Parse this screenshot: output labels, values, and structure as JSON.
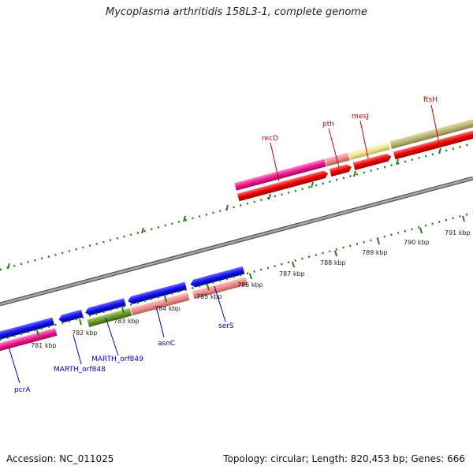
{
  "title": "Mycoplasma arthritidis 158L3-1, complete genome",
  "footer": {
    "accession": "Accession: NC_011025",
    "topology": "Topology: circular; Length: 820,453 bp; Genes: 666"
  },
  "colors": {
    "plus_label": "#cc0000",
    "minus_label": "#0000bb",
    "tick": "#2a7a1a",
    "backbone": "#8a8a8a"
  },
  "scale_labels": [
    {
      "text": "781 kbp"
    },
    {
      "text": "782 kbp"
    },
    {
      "text": "783 kbp"
    },
    {
      "text": "784 kbp"
    },
    {
      "text": "785 kbp"
    },
    {
      "text": "786 kbp"
    },
    {
      "text": "787 kbp"
    },
    {
      "text": "788 kbp"
    },
    {
      "text": "789 kbp"
    },
    {
      "text": "790 kbp"
    },
    {
      "text": "791 kbp"
    }
  ],
  "genes_plus": [
    {
      "name": "recD"
    },
    {
      "name": "pth"
    },
    {
      "name": "mesJ"
    },
    {
      "name": "ftsH"
    }
  ],
  "genes_minus": [
    {
      "name": "pcrA"
    },
    {
      "name": "MARTH_orf848"
    },
    {
      "name": "MARTH_orf849"
    },
    {
      "name": "asnC"
    },
    {
      "name": "serS"
    }
  ]
}
